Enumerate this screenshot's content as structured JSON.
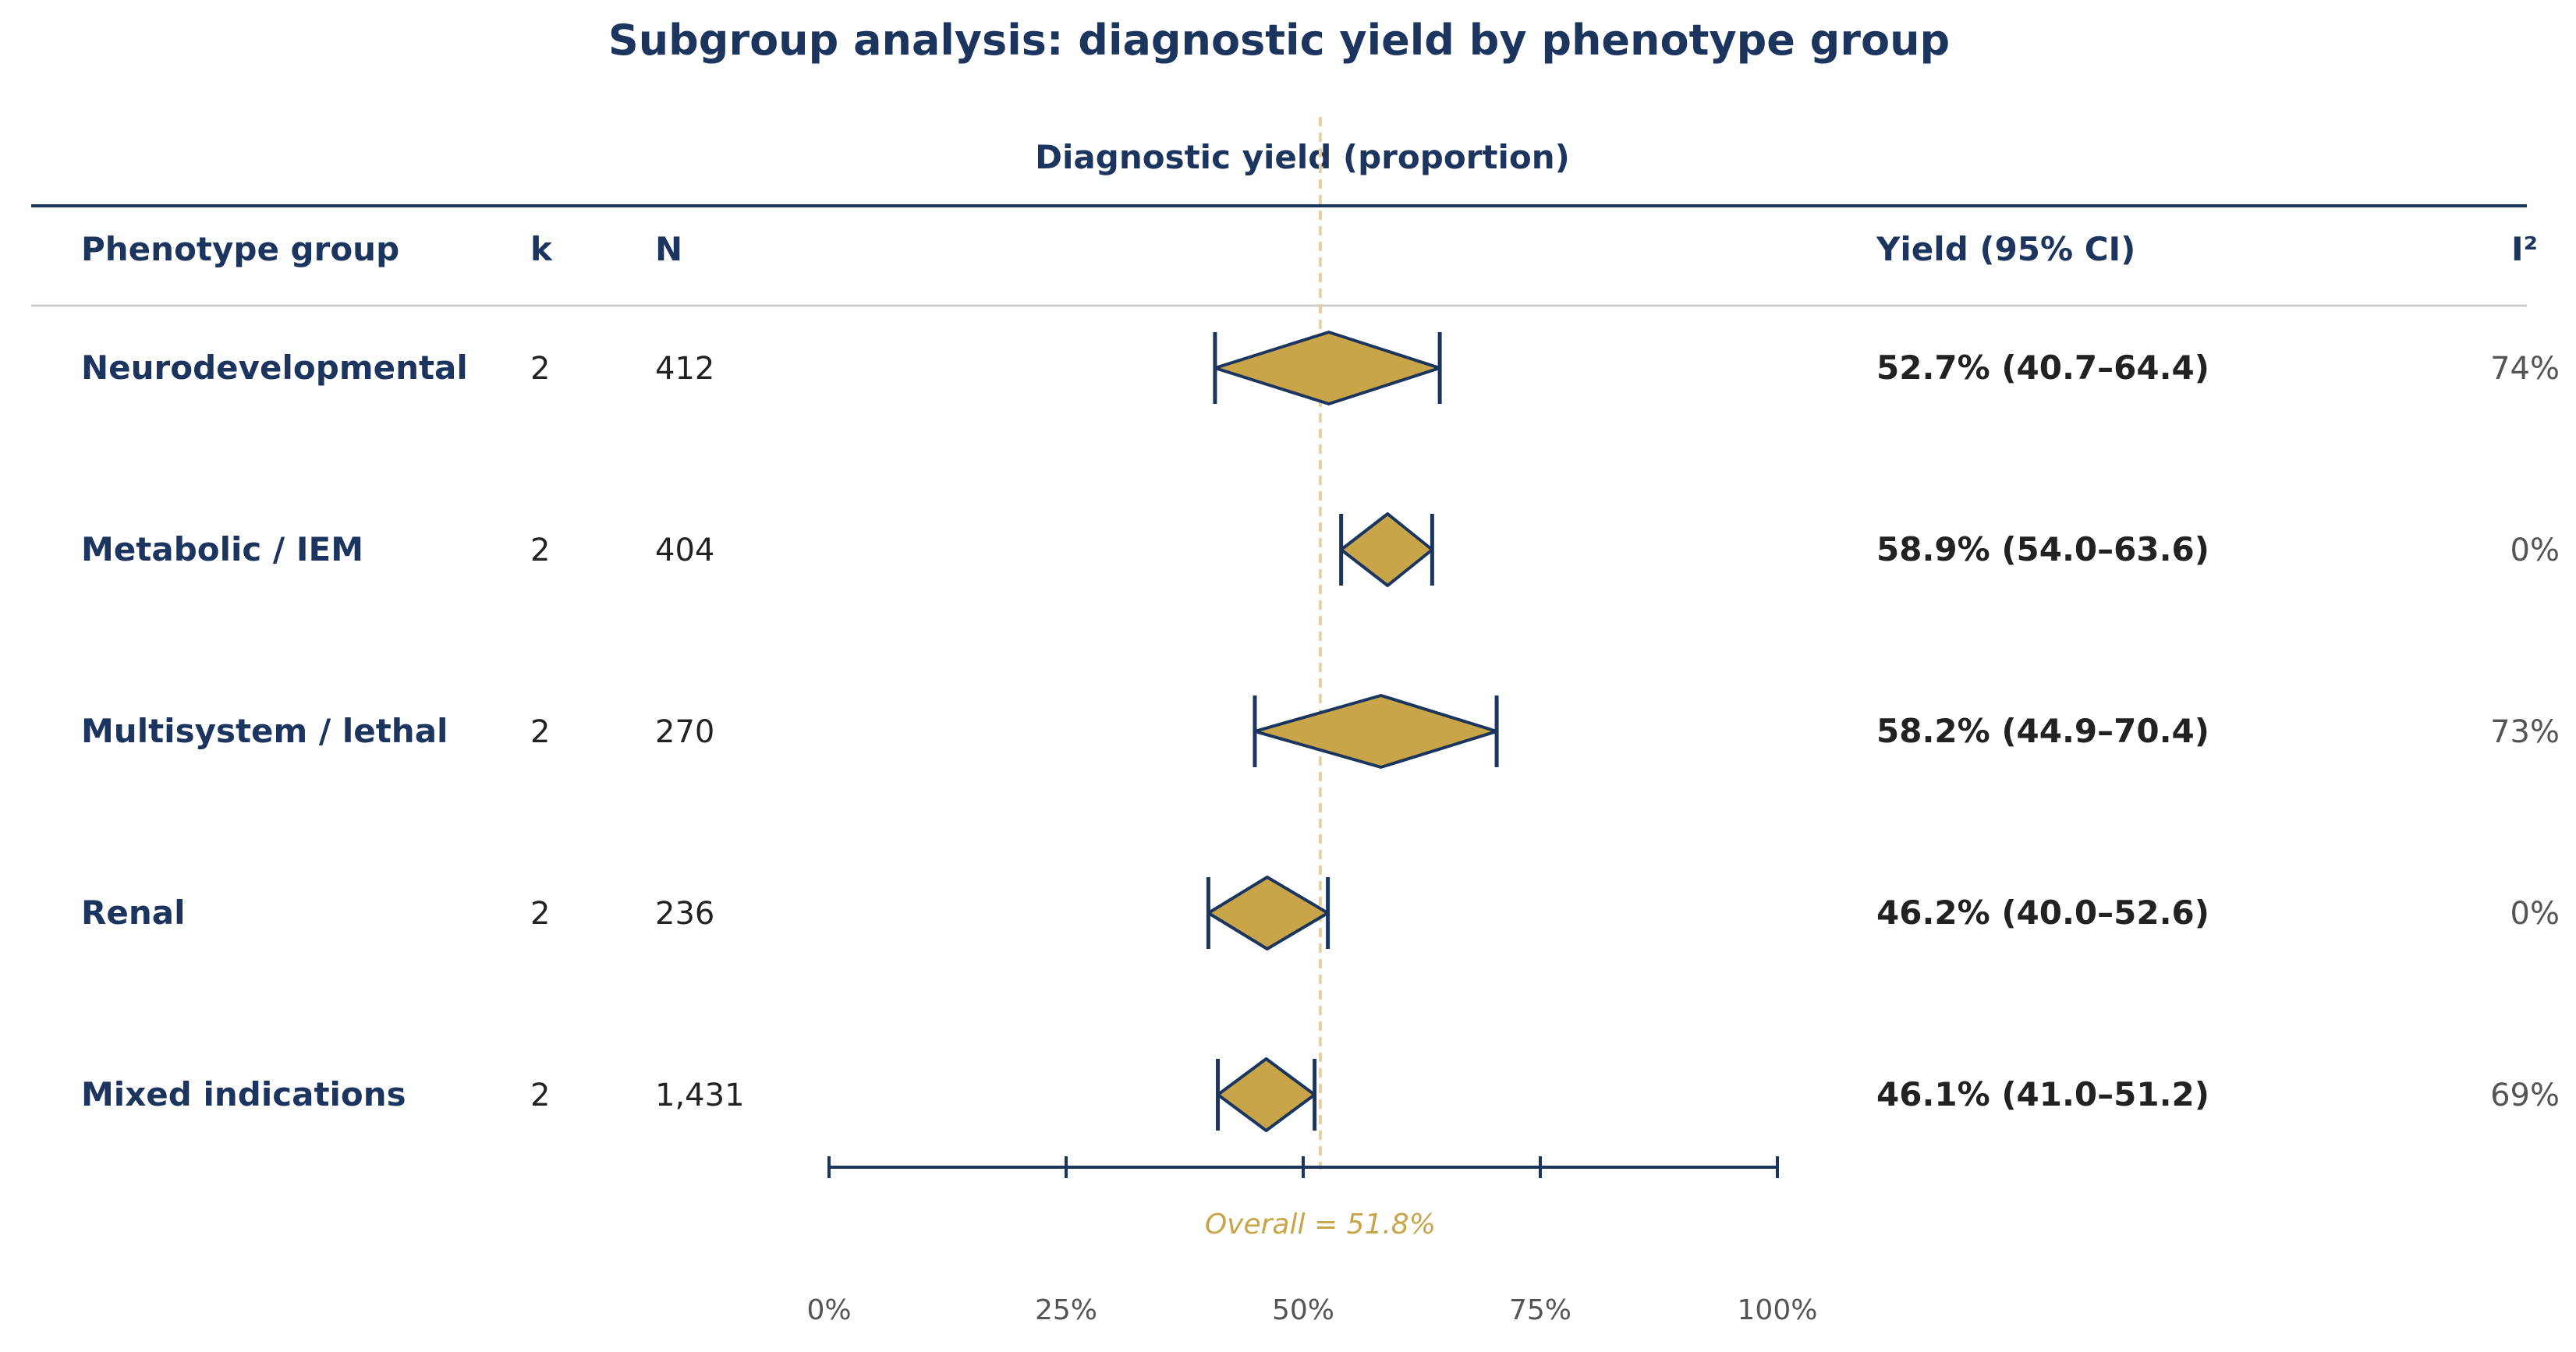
{
  "chart_data": {
    "type": "forest",
    "title": "Subgroup analysis: diagnostic yield by phenotype group",
    "xlabel": "Diagnostic yield (proportion)",
    "columns": {
      "group": "Phenotype group",
      "k": "k",
      "n": "N",
      "yield": "Yield (95% CI)",
      "i2": "I²"
    },
    "xlim": [
      0,
      1
    ],
    "ticks": [
      0,
      0.25,
      0.5,
      0.75,
      1
    ],
    "tick_labels": [
      "0%",
      "25%",
      "50%",
      "75%",
      "100%"
    ],
    "reference_line": {
      "value": 0.518,
      "label": "Overall = 51.8%"
    },
    "rows": [
      {
        "group": "Neurodevelopmental",
        "k": "2",
        "n": "412",
        "estimate": 0.527,
        "lower": 0.407,
        "upper": 0.644,
        "yield_text": "52.7% (40.7–64.4)",
        "i2": "74%"
      },
      {
        "group": "Metabolic / IEM",
        "k": "2",
        "n": "404",
        "estimate": 0.589,
        "lower": 0.54,
        "upper": 0.636,
        "yield_text": "58.9% (54.0–63.6)",
        "i2": "0%"
      },
      {
        "group": "Multisystem / lethal",
        "k": "2",
        "n": "270",
        "estimate": 0.582,
        "lower": 0.449,
        "upper": 0.704,
        "yield_text": "58.2% (44.9–70.4)",
        "i2": "73%"
      },
      {
        "group": "Renal",
        "k": "2",
        "n": "236",
        "estimate": 0.462,
        "lower": 0.4,
        "upper": 0.526,
        "yield_text": "46.2% (40.0–52.6)",
        "i2": "0%"
      },
      {
        "group": "Mixed indications",
        "k": "2",
        "n": "1,431",
        "estimate": 0.461,
        "lower": 0.41,
        "upper": 0.512,
        "yield_text": "46.1% (41.0–51.2)",
        "i2": "69%"
      }
    ],
    "colors": {
      "navy": "#1b355e",
      "gold": "#c9a54a",
      "reference": "#e8cfa0",
      "text": "#222222",
      "muted": "#555555",
      "divider": "#cccccc"
    }
  }
}
